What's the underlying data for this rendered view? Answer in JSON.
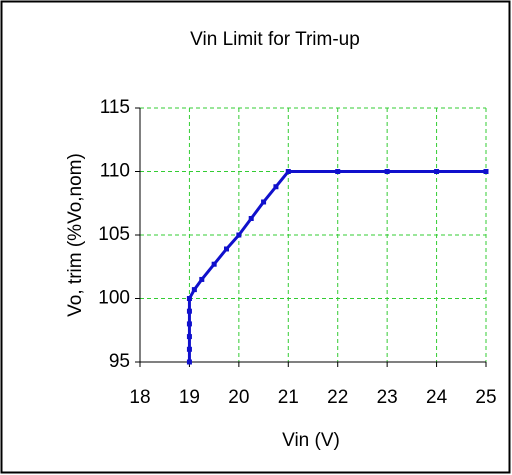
{
  "chart_data": {
    "type": "line",
    "title": "Vin Limit for Trim-up",
    "x_label": "Vin (V)",
    "y_label": "Vo, trim (%Vo,nom)",
    "series": [
      {
        "name": "Vin Limit",
        "color": "#1010cc",
        "x": [
          19,
          19,
          19,
          19,
          19,
          19,
          19.1,
          19.25,
          19.5,
          19.75,
          20,
          20.25,
          20.5,
          20.75,
          21,
          22,
          23,
          24,
          25
        ],
        "values": [
          95,
          96,
          97,
          98,
          99,
          100,
          100.7,
          101.5,
          102.7,
          103.9,
          105,
          106.3,
          107.6,
          108.8,
          110,
          110,
          110,
          110,
          110
        ]
      }
    ],
    "xlim": [
      18,
      25
    ],
    "xticks": [
      18,
      19,
      20,
      21,
      22,
      23,
      24,
      25
    ],
    "ylim": [
      95,
      115
    ],
    "yticks": [
      95,
      100,
      105,
      110,
      115
    ],
    "grid": true,
    "grid_color": "#33cc33"
  }
}
